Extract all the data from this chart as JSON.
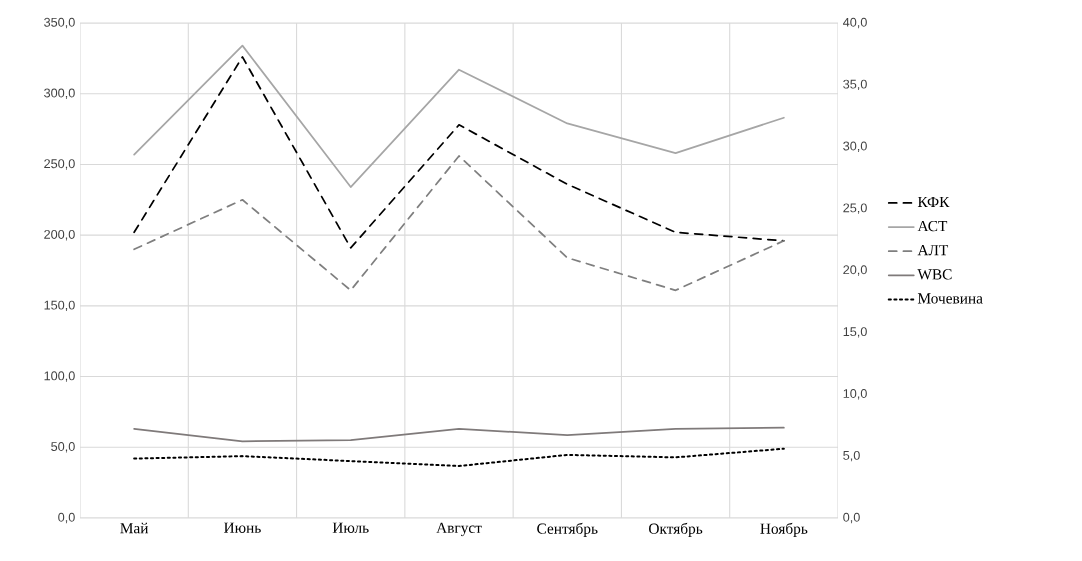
{
  "chart_data": {
    "type": "line",
    "categories": [
      "Май",
      "Июнь",
      "Июль",
      "Август",
      "Сентябрь",
      "Октябрь",
      "Ноябрь"
    ],
    "series": [
      {
        "name": "КФК",
        "color": "#000000",
        "line_style": "dashed",
        "values": [
          202,
          326,
          191,
          278,
          236,
          202,
          196
        ]
      },
      {
        "name": "АСТ",
        "color": "#a6a6a6",
        "line_style": "solid",
        "values": [
          257,
          334,
          234,
          317,
          279,
          258,
          283
        ]
      },
      {
        "name": "АЛТ",
        "color": "#7f7f7f",
        "line_style": "dashed",
        "values": [
          190,
          225,
          161,
          256,
          184,
          161,
          196
        ]
      },
      {
        "name": "WBC",
        "color": "#7f7a7a",
        "line_style": "solid",
        "axis": "y2",
        "values": [
          7.2,
          6.2,
          6.3,
          7.2,
          6.7,
          7.2,
          7.3
        ]
      },
      {
        "name": "Мочевина",
        "color": "#000000",
        "line_style": "dotted",
        "axis": "y2",
        "values": [
          4.8,
          5.0,
          4.6,
          4.2,
          5.1,
          4.9,
          5.6
        ]
      }
    ],
    "ylim": [
      0,
      350
    ],
    "yticks": [
      {
        "value": 0,
        "label": "0,0"
      },
      {
        "value": 50,
        "label": "50,0"
      },
      {
        "value": 100,
        "label": "100,0"
      },
      {
        "value": 150,
        "label": "150,0"
      },
      {
        "value": 200,
        "label": "200,0"
      },
      {
        "value": 250,
        "label": "250,0"
      },
      {
        "value": 300,
        "label": "300,0"
      },
      {
        "value": 350,
        "label": "350,0"
      }
    ],
    "y2lim": [
      0,
      40
    ],
    "y2ticks": [
      {
        "value": 0,
        "label": "0,0"
      },
      {
        "value": 5,
        "label": "5,0"
      },
      {
        "value": 10,
        "label": "10,0"
      },
      {
        "value": 15,
        "label": "15,0"
      },
      {
        "value": 20,
        "label": "20,0"
      },
      {
        "value": 25,
        "label": "25,0"
      },
      {
        "value": 30,
        "label": "30,0"
      },
      {
        "value": 35,
        "label": "35,0"
      },
      {
        "value": 40,
        "label": "40,0"
      }
    ],
    "grid": true,
    "legend": "right",
    "marker": "none"
  }
}
